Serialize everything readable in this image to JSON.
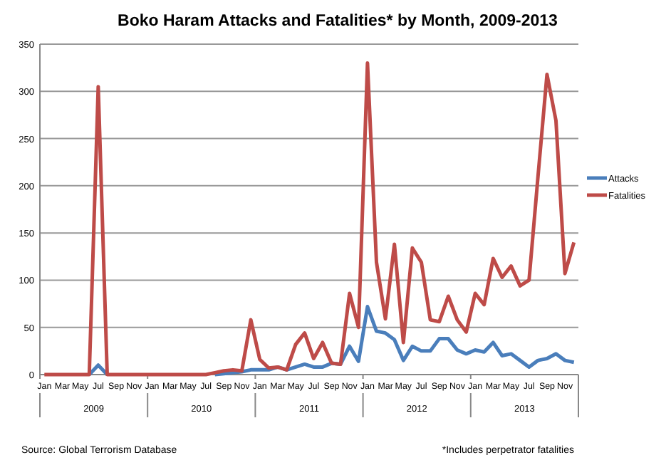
{
  "chart_data": {
    "type": "line",
    "title": "Boko Haram Attacks and Fatalities* by Month, 2009-2013",
    "categories": [
      "Jan",
      null,
      "Mar",
      null,
      "May",
      null,
      "Jul",
      null,
      "Sep",
      null,
      "Nov",
      null,
      "Jan",
      null,
      "Mar",
      null,
      "May",
      null,
      "Jul",
      null,
      "Sep",
      null,
      "Nov",
      null,
      "Jan",
      null,
      "Mar",
      null,
      "May",
      null,
      "Jul",
      null,
      "Sep",
      null,
      "Nov",
      null,
      "Jan",
      null,
      "Mar",
      null,
      "May",
      null,
      "Jul",
      null,
      "Sep",
      null,
      "Nov",
      null,
      "Jan",
      null,
      "Mar",
      null,
      "May",
      null,
      "Jul",
      null,
      "Sep",
      null,
      "Nov",
      null
    ],
    "series": [
      {
        "name": "Attacks",
        "color": "#4a7ebb",
        "values": [
          null,
          null,
          null,
          null,
          null,
          0,
          10,
          0,
          null,
          null,
          null,
          null,
          null,
          null,
          null,
          null,
          null,
          null,
          null,
          0,
          1,
          2,
          3,
          5,
          5,
          5,
          8,
          5,
          8,
          11,
          8,
          8,
          12,
          11,
          30,
          14,
          72,
          46,
          44,
          37,
          15,
          30,
          25,
          25,
          38,
          38,
          26,
          22,
          26,
          24,
          34,
          20,
          22,
          15,
          8,
          15,
          17,
          22,
          15,
          13
        ]
      },
      {
        "name": "Fatalities",
        "color": "#be4b48",
        "values": [
          0,
          0,
          0,
          0,
          0,
          0,
          305,
          0,
          0,
          0,
          0,
          0,
          0,
          0,
          0,
          0,
          0,
          0,
          0,
          2,
          4,
          5,
          4,
          58,
          16,
          7,
          8,
          5,
          32,
          44,
          17,
          34,
          12,
          11,
          86,
          50,
          330,
          119,
          59,
          138,
          34,
          134,
          119,
          58,
          56,
          83,
          58,
          45,
          86,
          74,
          123,
          103,
          115,
          94,
          100,
          210,
          318,
          269,
          107,
          140
        ]
      }
    ],
    "ylim": [
      0,
      350
    ],
    "yticks": [
      0,
      50,
      100,
      150,
      200,
      250,
      300,
      350
    ],
    "grid": "y",
    "legend": "right",
    "marker": "none",
    "line_style": "solid",
    "annotations": [
      "2009",
      "2010",
      "2011",
      "2012",
      "2013",
      "Source: Global Terrorism Database",
      "*Includes perpetrator fatalities"
    ]
  }
}
